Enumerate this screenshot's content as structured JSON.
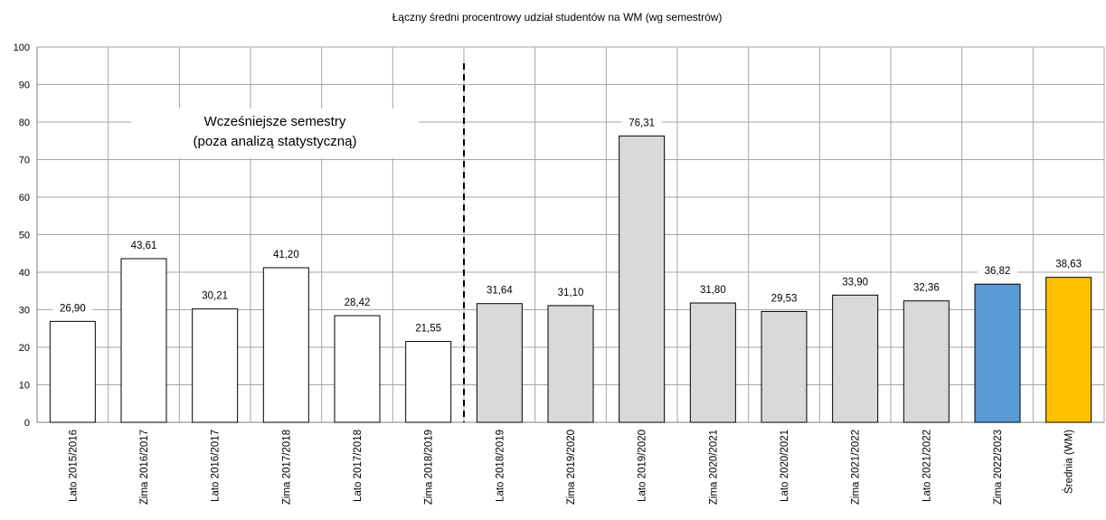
{
  "chart_data": {
    "type": "bar",
    "title": "Łączny średni procentrowy udział studentów na WM (wg semestrów)",
    "xlabel": "",
    "ylabel": "",
    "ylim": [
      0,
      100
    ],
    "yticks": [
      0,
      10,
      20,
      30,
      40,
      50,
      60,
      70,
      80,
      90,
      100
    ],
    "grid": true,
    "categories": [
      "Lato 2015/2016",
      "Zima 2016/2017",
      "Lato 2016/2017",
      "Zima 2017/2018",
      "Lato 2017/2018",
      "Zima 2018/2019",
      "Lato 2018/2019",
      "Zima 2019/2020",
      "Lato 2019/2020",
      "Zima 2020/2021",
      "Lato 2020/2021",
      "Zima 2021/2022",
      "Lato 2021/2022",
      "Zima 2022/2023",
      "Średnia (WM)"
    ],
    "values": [
      26.9,
      43.61,
      30.21,
      41.2,
      28.42,
      21.55,
      31.64,
      31.1,
      76.31,
      31.8,
      29.53,
      33.9,
      32.36,
      36.82,
      38.63
    ],
    "value_labels": [
      "26,90",
      "43,61",
      "30,21",
      "41,20",
      "28,42",
      "21,55",
      "31,64",
      "31,10",
      "76,31",
      "31,80",
      "29,53",
      "33,90",
      "32,36",
      "36,82",
      "38,63"
    ],
    "bar_colors": [
      "#ffffff",
      "#ffffff",
      "#ffffff",
      "#ffffff",
      "#ffffff",
      "#ffffff",
      "#d9d9d9",
      "#d9d9d9",
      "#d9d9d9",
      "#d9d9d9",
      "#d9d9d9",
      "#d9d9d9",
      "#d9d9d9",
      "#5b9bd5",
      "#ffc000"
    ],
    "divider_after_index": 5,
    "annotation": {
      "lines": [
        "Wcześniejsze semestry",
        "(poza analizą statystyczną)"
      ]
    }
  }
}
